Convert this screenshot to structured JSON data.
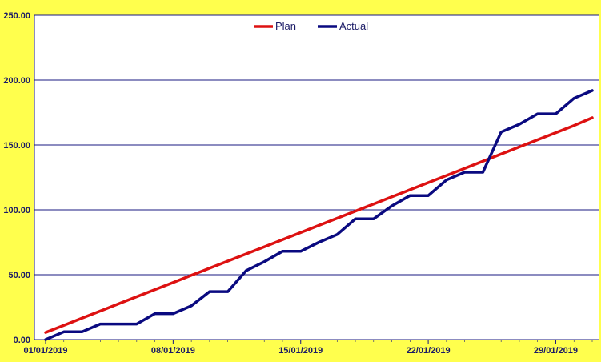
{
  "chart_data": {
    "type": "line",
    "title": "",
    "xlabel": "",
    "ylabel": "",
    "ylim": [
      0,
      250
    ],
    "y_ticks": [
      "0.00",
      "50.00",
      "100.00",
      "150.00",
      "200.00",
      "250.00"
    ],
    "x_ticks": [
      "01/01/2019",
      "08/01/2019",
      "15/01/2019",
      "22/01/2019",
      "29/01/2019"
    ],
    "grid": "horizontal",
    "legend_position": "top-center",
    "x": [
      "01/01/2019",
      "02/01/2019",
      "03/01/2019",
      "04/01/2019",
      "05/01/2019",
      "06/01/2019",
      "07/01/2019",
      "08/01/2019",
      "09/01/2019",
      "10/01/2019",
      "11/01/2019",
      "12/01/2019",
      "13/01/2019",
      "14/01/2019",
      "15/01/2019",
      "16/01/2019",
      "17/01/2019",
      "18/01/2019",
      "19/01/2019",
      "20/01/2019",
      "21/01/2019",
      "22/01/2019",
      "23/01/2019",
      "24/01/2019",
      "25/01/2019",
      "26/01/2019",
      "27/01/2019",
      "28/01/2019",
      "29/01/2019",
      "30/01/2019",
      "31/01/2019"
    ],
    "series": [
      {
        "name": "Plan",
        "color": "#DD1111",
        "values": [
          5.5,
          11,
          16.5,
          22,
          27.5,
          33,
          38.5,
          44,
          49.5,
          55,
          60.5,
          66,
          71.5,
          77,
          82.5,
          88,
          93.5,
          99,
          104.5,
          110,
          115.5,
          121,
          126.5,
          132,
          137.5,
          143,
          148.5,
          154,
          159.5,
          165,
          171
        ]
      },
      {
        "name": "Actual",
        "color": "#0A0A80",
        "values": [
          0,
          6,
          6,
          12,
          12,
          12,
          20,
          20,
          26,
          37,
          37,
          53,
          60,
          68,
          68,
          75,
          81,
          93,
          93,
          103,
          111,
          111,
          123,
          129,
          129,
          160,
          166,
          174,
          174,
          186,
          192
        ]
      }
    ]
  }
}
